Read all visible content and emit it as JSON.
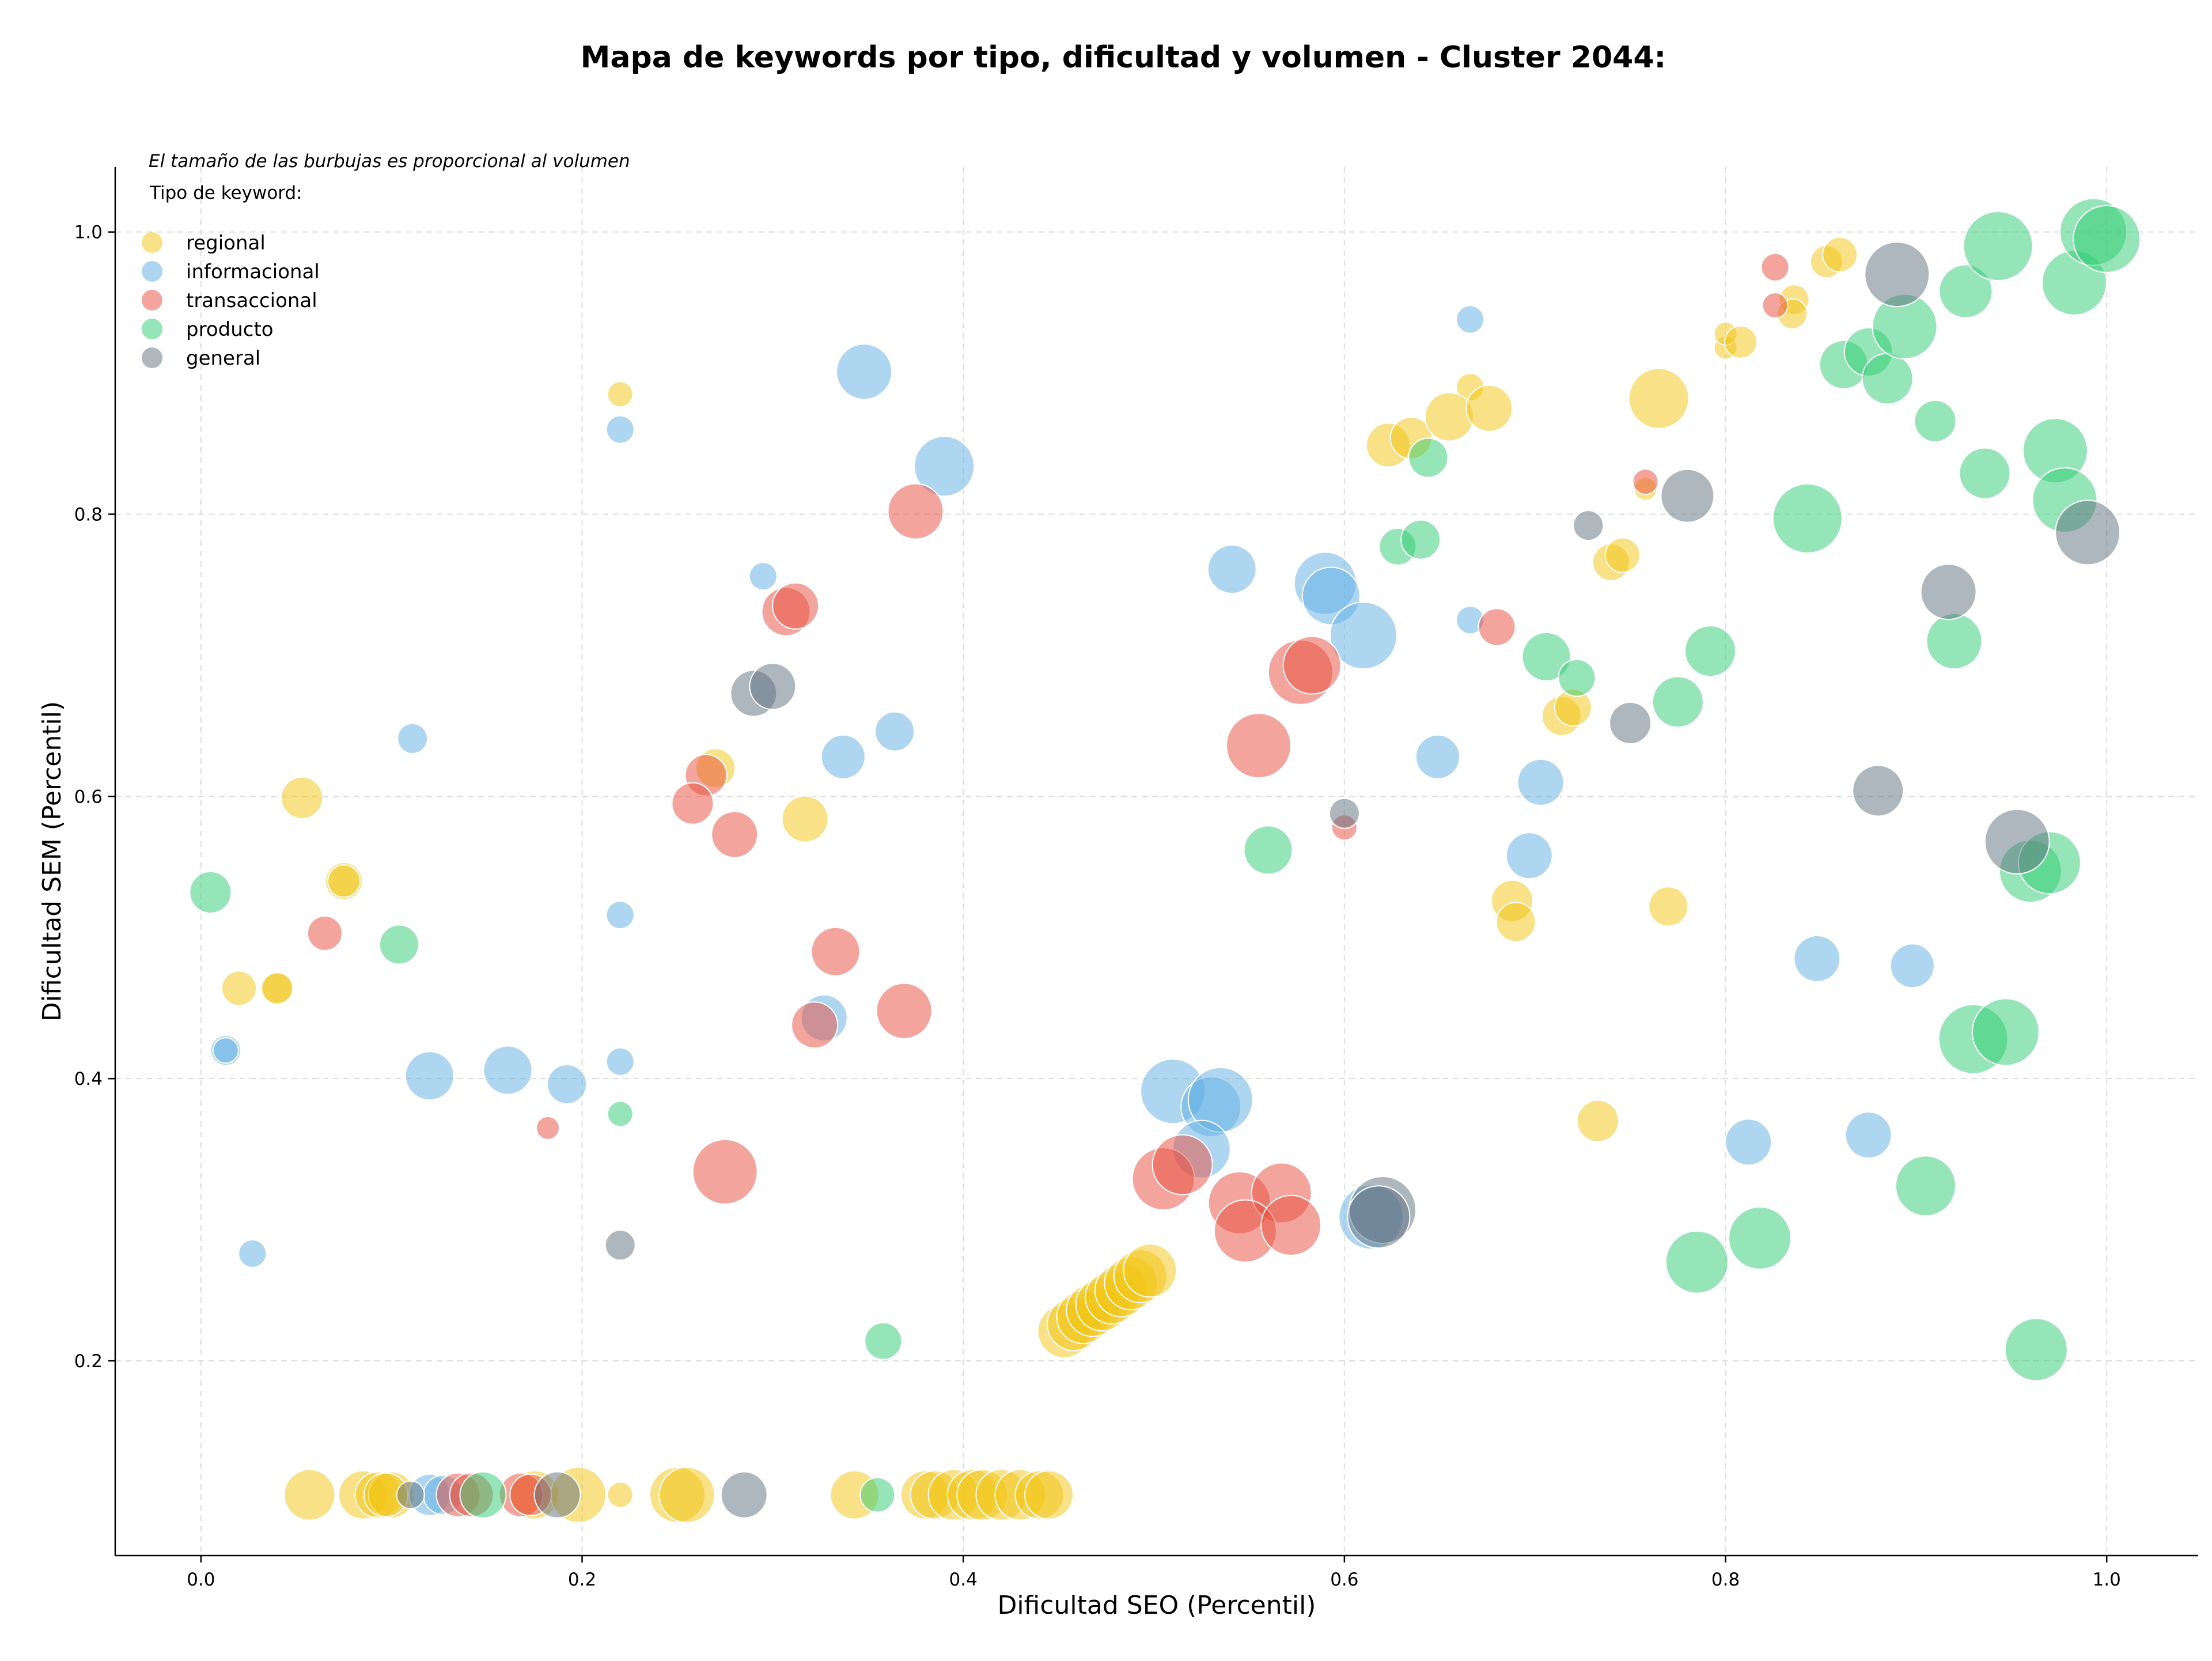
{
  "chart_data": {
    "type": "scatter",
    "title": "Mapa de keywords por tipo, dificultad y volumen - Cluster 2044:",
    "xlabel": "Dificultad SEO (Percentil)",
    "ylabel": "Dificultad SEM (Percentil)",
    "xlim": [
      -0.045,
      1.048
    ],
    "ylim": [
      0.062,
      1.046
    ],
    "xticks": [
      "0.0",
      "0.2",
      "0.4",
      "0.6",
      "0.8",
      "1.0"
    ],
    "yticks": [
      "0.2",
      "0.4",
      "0.6",
      "0.8",
      "1.0"
    ],
    "grid": true,
    "legend_position": "top-left",
    "size_note": "El tamaño de las burbujas es proporcional al volumen",
    "legend_title": "Tipo de keyword:",
    "series": [
      {
        "name": "regional",
        "color": "#f1c40f",
        "points": [
          [
            0.22,
            0.885,
            22
          ],
          [
            0.053,
            0.599,
            36
          ],
          [
            0.075,
            0.54,
            32
          ],
          [
            0.075,
            0.54,
            28
          ],
          [
            0.02,
            0.464,
            30
          ],
          [
            0.04,
            0.464,
            29
          ],
          [
            0.04,
            0.464,
            27
          ],
          [
            0.27,
            0.62,
            34
          ],
          [
            0.317,
            0.584,
            40
          ],
          [
            0.623,
            0.849,
            38
          ],
          [
            0.635,
            0.854,
            36
          ],
          [
            0.666,
            0.89,
            24
          ],
          [
            0.655,
            0.869,
            42
          ],
          [
            0.676,
            0.875,
            40
          ],
          [
            0.765,
            0.882,
            52
          ],
          [
            0.8,
            0.918,
            20
          ],
          [
            0.8,
            0.928,
            20
          ],
          [
            0.808,
            0.922,
            28
          ],
          [
            0.836,
            0.952,
            26
          ],
          [
            0.835,
            0.942,
            26
          ],
          [
            0.853,
            0.979,
            28
          ],
          [
            0.86,
            0.984,
            30
          ],
          [
            0.758,
            0.818,
            20
          ],
          [
            0.74,
            0.766,
            32
          ],
          [
            0.746,
            0.771,
            30
          ],
          [
            0.714,
            0.657,
            34
          ],
          [
            0.72,
            0.663,
            32
          ],
          [
            0.688,
            0.526,
            36
          ],
          [
            0.69,
            0.511,
            34
          ],
          [
            0.77,
            0.522,
            34
          ],
          [
            0.733,
            0.37,
            36
          ],
          [
            0.453,
            0.221,
            46
          ],
          [
            0.458,
            0.226,
            46
          ],
          [
            0.463,
            0.231,
            46
          ],
          [
            0.468,
            0.236,
            46
          ],
          [
            0.473,
            0.24,
            46
          ],
          [
            0.478,
            0.245,
            46
          ],
          [
            0.483,
            0.25,
            46
          ],
          [
            0.488,
            0.255,
            46
          ],
          [
            0.493,
            0.26,
            46
          ],
          [
            0.498,
            0.264,
            46
          ],
          [
            0.057,
            0.105,
            44
          ],
          [
            0.085,
            0.105,
            42
          ],
          [
            0.093,
            0.105,
            40
          ],
          [
            0.1,
            0.105,
            40
          ],
          [
            0.097,
            0.105,
            38
          ],
          [
            0.175,
            0.105,
            42
          ],
          [
            0.198,
            0.105,
            48
          ],
          [
            0.22,
            0.105,
            22
          ],
          [
            0.25,
            0.105,
            48
          ],
          [
            0.255,
            0.105,
            48
          ],
          [
            0.343,
            0.105,
            42
          ],
          [
            0.38,
            0.105,
            42
          ],
          [
            0.385,
            0.105,
            42
          ],
          [
            0.395,
            0.105,
            44
          ],
          [
            0.405,
            0.105,
            44
          ],
          [
            0.41,
            0.105,
            44
          ],
          [
            0.42,
            0.105,
            44
          ],
          [
            0.43,
            0.105,
            44
          ],
          [
            0.44,
            0.105,
            42
          ],
          [
            0.445,
            0.105,
            42
          ]
        ]
      },
      {
        "name": "informacional",
        "color": "#5dade2",
        "points": [
          [
            0.22,
            0.86,
            24
          ],
          [
            0.111,
            0.641,
            26
          ],
          [
            0.013,
            0.42,
            26
          ],
          [
            0.013,
            0.42,
            22
          ],
          [
            0.027,
            0.276,
            24
          ],
          [
            0.12,
            0.402,
            42
          ],
          [
            0.161,
            0.406,
            42
          ],
          [
            0.192,
            0.396,
            34
          ],
          [
            0.22,
            0.516,
            24
          ],
          [
            0.22,
            0.412,
            24
          ],
          [
            0.295,
            0.756,
            24
          ],
          [
            0.348,
            0.901,
            48
          ],
          [
            0.39,
            0.834,
            52
          ],
          [
            0.337,
            0.628,
            38
          ],
          [
            0.364,
            0.646,
            34
          ],
          [
            0.327,
            0.443,
            40
          ],
          [
            0.541,
            0.761,
            42
          ],
          [
            0.59,
            0.751,
            54
          ],
          [
            0.593,
            0.742,
            50
          ],
          [
            0.61,
            0.714,
            58
          ],
          [
            0.666,
            0.938,
            24
          ],
          [
            0.666,
            0.725,
            24
          ],
          [
            0.649,
            0.628,
            38
          ],
          [
            0.703,
            0.61,
            40
          ],
          [
            0.697,
            0.558,
            40
          ],
          [
            0.51,
            0.391,
            56
          ],
          [
            0.53,
            0.38,
            52
          ],
          [
            0.535,
            0.385,
            56
          ],
          [
            0.525,
            0.35,
            50
          ],
          [
            0.614,
            0.302,
            56
          ],
          [
            0.848,
            0.485,
            40
          ],
          [
            0.898,
            0.48,
            38
          ],
          [
            0.812,
            0.355,
            40
          ],
          [
            0.875,
            0.36,
            40
          ],
          [
            0.12,
            0.105,
            36
          ],
          [
            0.127,
            0.105,
            34
          ]
        ]
      },
      {
        "name": "transaccional",
        "color": "#e74c3c",
        "points": [
          [
            0.065,
            0.503,
            30
          ],
          [
            0.182,
            0.365,
            20
          ],
          [
            0.375,
            0.802,
            48
          ],
          [
            0.307,
            0.731,
            42
          ],
          [
            0.312,
            0.735,
            40
          ],
          [
            0.265,
            0.615,
            36
          ],
          [
            0.258,
            0.595,
            36
          ],
          [
            0.28,
            0.573,
            40
          ],
          [
            0.333,
            0.49,
            42
          ],
          [
            0.322,
            0.438,
            40
          ],
          [
            0.369,
            0.448,
            48
          ],
          [
            0.275,
            0.334,
            56
          ],
          [
            0.577,
            0.688,
            56
          ],
          [
            0.583,
            0.693,
            50
          ],
          [
            0.555,
            0.636,
            56
          ],
          [
            0.68,
            0.72,
            32
          ],
          [
            0.6,
            0.578,
            22
          ],
          [
            0.826,
            0.975,
            24
          ],
          [
            0.826,
            0.948,
            22
          ],
          [
            0.758,
            0.823,
            22
          ],
          [
            0.505,
            0.329,
            54
          ],
          [
            0.515,
            0.339,
            52
          ],
          [
            0.545,
            0.312,
            54
          ],
          [
            0.567,
            0.319,
            52
          ],
          [
            0.548,
            0.292,
            54
          ],
          [
            0.572,
            0.296,
            52
          ],
          [
            0.135,
            0.105,
            38
          ],
          [
            0.142,
            0.105,
            38
          ],
          [
            0.168,
            0.105,
            38
          ],
          [
            0.173,
            0.105,
            36
          ]
        ]
      },
      {
        "name": "producto",
        "color": "#2ecc71",
        "points": [
          [
            0.005,
            0.532,
            36
          ],
          [
            0.104,
            0.495,
            34
          ],
          [
            0.22,
            0.375,
            22
          ],
          [
            0.358,
            0.214,
            32
          ],
          [
            0.56,
            0.562,
            42
          ],
          [
            0.644,
            0.84,
            34
          ],
          [
            0.628,
            0.777,
            32
          ],
          [
            0.64,
            0.782,
            34
          ],
          [
            0.706,
            0.699,
            42
          ],
          [
            0.722,
            0.684,
            32
          ],
          [
            0.775,
            0.667,
            44
          ],
          [
            0.792,
            0.703,
            44
          ],
          [
            0.843,
            0.797,
            60
          ],
          [
            0.862,
            0.906,
            42
          ],
          [
            0.875,
            0.915,
            42
          ],
          [
            0.885,
            0.896,
            44
          ],
          [
            0.894,
            0.933,
            56
          ],
          [
            0.926,
            0.958,
            46
          ],
          [
            0.943,
            0.99,
            60
          ],
          [
            0.983,
            0.964,
            56
          ],
          [
            0.993,
            1.0,
            58
          ],
          [
            1.0,
            0.995,
            58
          ],
          [
            0.91,
            0.866,
            36
          ],
          [
            0.936,
            0.829,
            44
          ],
          [
            0.973,
            0.845,
            56
          ],
          [
            0.978,
            0.81,
            56
          ],
          [
            0.92,
            0.71,
            48
          ],
          [
            0.96,
            0.547,
            54
          ],
          [
            0.97,
            0.553,
            54
          ],
          [
            0.93,
            0.428,
            60
          ],
          [
            0.947,
            0.433,
            58
          ],
          [
            0.905,
            0.324,
            52
          ],
          [
            0.785,
            0.27,
            54
          ],
          [
            0.818,
            0.287,
            54
          ],
          [
            0.963,
            0.208,
            54
          ],
          [
            0.148,
            0.105,
            40
          ],
          [
            0.355,
            0.105,
            30
          ]
        ]
      },
      {
        "name": "general",
        "color": "#5d6d7e",
        "points": [
          [
            0.22,
            0.282,
            26
          ],
          [
            0.29,
            0.673,
            40
          ],
          [
            0.3,
            0.678,
            40
          ],
          [
            0.6,
            0.588,
            26
          ],
          [
            0.62,
            0.307,
            58
          ],
          [
            0.618,
            0.302,
            54
          ],
          [
            0.728,
            0.792,
            26
          ],
          [
            0.75,
            0.652,
            36
          ],
          [
            0.78,
            0.813,
            46
          ],
          [
            0.88,
            0.604,
            44
          ],
          [
            0.89,
            0.97,
            56
          ],
          [
            0.917,
            0.745,
            48
          ],
          [
            0.953,
            0.568,
            56
          ],
          [
            0.99,
            0.787,
            56
          ],
          [
            0.11,
            0.105,
            24
          ],
          [
            0.187,
            0.105,
            40
          ],
          [
            0.285,
            0.105,
            40
          ]
        ]
      }
    ]
  }
}
